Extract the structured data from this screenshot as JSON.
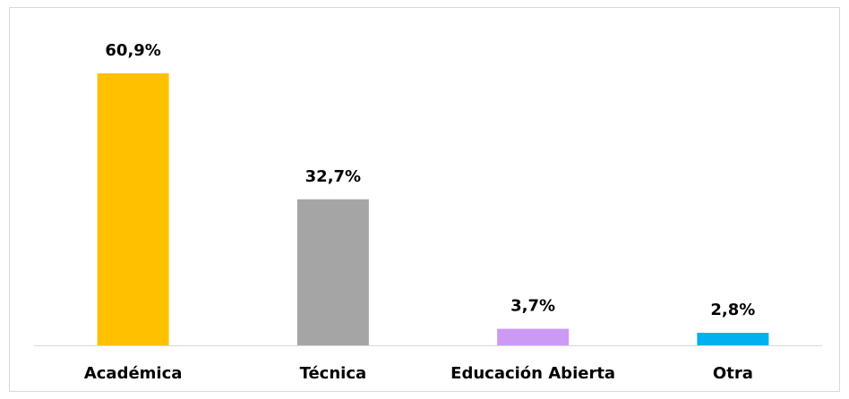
{
  "chart_data": {
    "type": "bar",
    "categories": [
      "Académica",
      "Técnica",
      "Educación Abierta",
      "Otra"
    ],
    "values": [
      60.9,
      32.7,
      3.7,
      2.8
    ],
    "value_labels": [
      "60,9%",
      "32,7%",
      "3,7%",
      "2,8%"
    ],
    "colors": [
      "#ffc000",
      "#a5a5a5",
      "#cc99f5",
      "#00b0f0"
    ]
  }
}
